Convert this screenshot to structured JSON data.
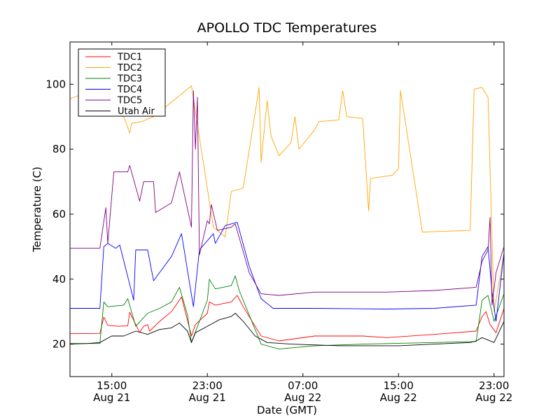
{
  "chart_data": {
    "type": "line",
    "title": "APOLLO TDC Temperatures",
    "xlabel": "Date (GMT)",
    "ylabel": "Temperature (C)",
    "ylim": [
      10,
      113
    ],
    "xlim": [
      "2011-08-21 11:30",
      "2011-08-22 23:50"
    ],
    "yticks": [
      20,
      40,
      60,
      80,
      100
    ],
    "xticks": [
      {
        "at": "2011-08-21 15:00",
        "time": "15:00",
        "date": "Aug 21"
      },
      {
        "at": "2011-08-21 23:00",
        "time": "23:00",
        "date": "Aug 21"
      },
      {
        "at": "2011-08-22 07:00",
        "time": "07:00",
        "date": "Aug 22"
      },
      {
        "at": "2011-08-22 15:00",
        "time": "15:00",
        "date": "Aug 22"
      },
      {
        "at": "2011-08-22 23:00",
        "time": "23:00",
        "date": "Aug 22"
      }
    ],
    "legend_position": "top-left",
    "grid": false,
    "series": [
      {
        "name": "TDC1",
        "color": "#ff0000",
        "points": [
          [
            "2011-08-21 11:30",
            23.2
          ],
          [
            "2011-08-21 14:00",
            23.3
          ],
          [
            "2011-08-21 14:20",
            28.3
          ],
          [
            "2011-08-21 14:40",
            25.8
          ],
          [
            "2011-08-21 15:30",
            25.5
          ],
          [
            "2011-08-21 16:20",
            25.6
          ],
          [
            "2011-08-21 16:30",
            29.8
          ],
          [
            "2011-08-21 17:20",
            23.6
          ],
          [
            "2011-08-21 17:40",
            25.5
          ],
          [
            "2011-08-21 18:00",
            26.0
          ],
          [
            "2011-08-21 18:10",
            24.0
          ],
          [
            "2011-08-21 19:00",
            27.0
          ],
          [
            "2011-08-21 20:00",
            30.0
          ],
          [
            "2011-08-21 20:50",
            34.5
          ],
          [
            "2011-08-21 21:40",
            22.5
          ],
          [
            "2011-08-21 22:00",
            26.0
          ],
          [
            "2011-08-21 23:00",
            29.5
          ],
          [
            "2011-08-21 23:10",
            33.0
          ],
          [
            "2011-08-21 23:40",
            32.0
          ],
          [
            "2011-08-22 01:00",
            33.0
          ],
          [
            "2011-08-22 01:30",
            35.0
          ],
          [
            "2011-08-22 02:00",
            31.5
          ],
          [
            "2011-08-22 03:30",
            22.5
          ],
          [
            "2011-08-22 05:00",
            21.0
          ],
          [
            "2011-08-22 08:00",
            22.5
          ],
          [
            "2011-08-22 12:00",
            22.5
          ],
          [
            "2011-08-22 14:00",
            22.0
          ],
          [
            "2011-08-22 18:00",
            23.0
          ],
          [
            "2011-08-22 21:30",
            24.0
          ],
          [
            "2011-08-22 22:00",
            28.5
          ],
          [
            "2011-08-22 22:20",
            30.0
          ],
          [
            "2011-08-22 22:40",
            26.0
          ],
          [
            "2011-08-22 23:10",
            23.5
          ],
          [
            "2011-08-22 23:50",
            31.0
          ]
        ]
      },
      {
        "name": "TDC2",
        "color": "#ffa500",
        "points": [
          [
            "2011-08-21 11:30",
            95.5
          ],
          [
            "2011-08-21 14:00",
            99.0
          ],
          [
            "2011-08-21 16:00",
            90.0
          ],
          [
            "2011-08-21 16:30",
            85.0
          ],
          [
            "2011-08-21 16:40",
            88.0
          ],
          [
            "2011-08-21 17:30",
            88.5
          ],
          [
            "2011-08-21 18:30",
            90.0
          ],
          [
            "2011-08-21 21:40",
            99.5
          ],
          [
            "2011-08-21 23:30",
            56.0
          ],
          [
            "2011-08-22 00:30",
            53.0
          ],
          [
            "2011-08-22 01:00",
            67.0
          ],
          [
            "2011-08-22 02:00",
            68.0
          ],
          [
            "2011-08-22 03:20",
            99.0
          ],
          [
            "2011-08-22 03:30",
            76.0
          ],
          [
            "2011-08-22 04:00",
            95.0
          ],
          [
            "2011-08-22 04:20",
            84.0
          ],
          [
            "2011-08-22 05:00",
            78.0
          ],
          [
            "2011-08-22 06:00",
            82.0
          ],
          [
            "2011-08-22 06:20",
            90.0
          ],
          [
            "2011-08-22 06:40",
            80.0
          ],
          [
            "2011-08-22 08:00",
            86.0
          ],
          [
            "2011-08-22 08:20",
            88.5
          ],
          [
            "2011-08-22 10:00",
            89.0
          ],
          [
            "2011-08-22 10:20",
            98.0
          ],
          [
            "2011-08-22 10:40",
            90.0
          ],
          [
            "2011-08-22 12:00",
            89.5
          ],
          [
            "2011-08-22 12:30",
            61.0
          ],
          [
            "2011-08-22 12:40",
            71.0
          ],
          [
            "2011-08-22 14:30",
            72.0
          ],
          [
            "2011-08-22 15:00",
            74.0
          ],
          [
            "2011-08-22 15:10",
            98.0
          ],
          [
            "2011-08-22 15:20",
            94.0
          ],
          [
            "2011-08-22 17:00",
            54.5
          ],
          [
            "2011-08-22 21:00",
            55.0
          ],
          [
            "2011-08-22 21:20",
            98.5
          ],
          [
            "2011-08-22 22:00",
            99.0
          ],
          [
            "2011-08-22 22:30",
            96.0
          ],
          [
            "2011-08-22 23:00",
            30.0
          ],
          [
            "2011-08-22 23:50",
            48.0
          ]
        ]
      },
      {
        "name": "TDC3",
        "color": "#008000",
        "points": [
          [
            "2011-08-21 11:30",
            20.2
          ],
          [
            "2011-08-21 14:00",
            20.2
          ],
          [
            "2011-08-21 14:20",
            33.0
          ],
          [
            "2011-08-21 14:40",
            31.5
          ],
          [
            "2011-08-21 16:00",
            32.0
          ],
          [
            "2011-08-21 16:20",
            34.0
          ],
          [
            "2011-08-21 17:00",
            25.5
          ],
          [
            "2011-08-21 18:00",
            29.5
          ],
          [
            "2011-08-21 19:00",
            31.0
          ],
          [
            "2011-08-21 20:00",
            33.0
          ],
          [
            "2011-08-21 20:40",
            37.5
          ],
          [
            "2011-08-21 21:20",
            29.0
          ],
          [
            "2011-08-21 21:40",
            20.5
          ],
          [
            "2011-08-21 23:00",
            33.5
          ],
          [
            "2011-08-21 23:10",
            40.0
          ],
          [
            "2011-08-21 23:40",
            37.0
          ],
          [
            "2011-08-22 01:00",
            38.0
          ],
          [
            "2011-08-22 01:20",
            41.0
          ],
          [
            "2011-08-22 01:40",
            36.5
          ],
          [
            "2011-08-22 03:30",
            20.0
          ],
          [
            "2011-08-22 05:00",
            18.5
          ],
          [
            "2011-08-22 08:00",
            19.5
          ],
          [
            "2011-08-22 12:00",
            20.0
          ],
          [
            "2011-08-22 18:00",
            20.5
          ],
          [
            "2011-08-22 21:30",
            20.8
          ],
          [
            "2011-08-22 22:00",
            33.5
          ],
          [
            "2011-08-22 22:30",
            35.0
          ],
          [
            "2011-08-22 23:00",
            27.0
          ],
          [
            "2011-08-22 23:50",
            35.5
          ]
        ]
      },
      {
        "name": "TDC4",
        "color": "#0000ff",
        "points": [
          [
            "2011-08-21 11:30",
            31.0
          ],
          [
            "2011-08-21 14:00",
            31.0
          ],
          [
            "2011-08-21 14:20",
            50.0
          ],
          [
            "2011-08-21 14:40",
            51.0
          ],
          [
            "2011-08-21 15:20",
            49.5
          ],
          [
            "2011-08-21 15:40",
            50.5
          ],
          [
            "2011-08-21 16:50",
            33.5
          ],
          [
            "2011-08-21 17:00",
            49.0
          ],
          [
            "2011-08-21 18:00",
            49.0
          ],
          [
            "2011-08-21 18:30",
            39.5
          ],
          [
            "2011-08-21 20:00",
            47.0
          ],
          [
            "2011-08-21 20:50",
            54.0
          ],
          [
            "2011-08-21 21:50",
            31.5
          ],
          [
            "2011-08-21 22:20",
            49.0
          ],
          [
            "2011-08-21 23:30",
            54.0
          ],
          [
            "2011-08-21 23:40",
            51.0
          ],
          [
            "2011-08-22 00:30",
            56.5
          ],
          [
            "2011-08-22 01:30",
            57.5
          ],
          [
            "2011-08-22 02:30",
            44.0
          ],
          [
            "2011-08-22 03:30",
            34.0
          ],
          [
            "2011-08-22 04:30",
            31.0
          ],
          [
            "2011-08-22 08:00",
            31.0
          ],
          [
            "2011-08-22 14:00",
            30.8
          ],
          [
            "2011-08-22 18:00",
            31.0
          ],
          [
            "2011-08-22 21:30",
            32.0
          ],
          [
            "2011-08-22 22:00",
            47.0
          ],
          [
            "2011-08-22 22:30",
            50.0
          ],
          [
            "2011-08-22 22:50",
            36.0
          ],
          [
            "2011-08-22 23:10",
            27.0
          ],
          [
            "2011-08-22 23:50",
            48.0
          ]
        ]
      },
      {
        "name": "TDC5",
        "color": "#800080",
        "points": [
          [
            "2011-08-21 11:30",
            49.5
          ],
          [
            "2011-08-21 14:00",
            49.5
          ],
          [
            "2011-08-21 14:30",
            62.0
          ],
          [
            "2011-08-21 14:40",
            51.0
          ],
          [
            "2011-08-21 15:10",
            73.0
          ],
          [
            "2011-08-21 16:20",
            73.0
          ],
          [
            "2011-08-21 16:30",
            75.0
          ],
          [
            "2011-08-21 17:20",
            64.0
          ],
          [
            "2011-08-21 17:40",
            70.0
          ],
          [
            "2011-08-21 18:30",
            70.0
          ],
          [
            "2011-08-21 18:40",
            60.5
          ],
          [
            "2011-08-21 20:00",
            63.5
          ],
          [
            "2011-08-21 20:40",
            73.0
          ],
          [
            "2011-08-21 21:40",
            56.0
          ],
          [
            "2011-08-21 21:50",
            98.0
          ],
          [
            "2011-08-21 22:00",
            80.0
          ],
          [
            "2011-08-21 22:10",
            96.0
          ],
          [
            "2011-08-21 22:20",
            47.5
          ],
          [
            "2011-08-21 23:00",
            58.0
          ],
          [
            "2011-08-21 23:10",
            57.0
          ],
          [
            "2011-08-21 23:20",
            63.0
          ],
          [
            "2011-08-21 23:50",
            55.0
          ],
          [
            "2011-08-22 01:00",
            56.0
          ],
          [
            "2011-08-22 01:20",
            57.0
          ],
          [
            "2011-08-22 02:30",
            42.0
          ],
          [
            "2011-08-22 03:30",
            35.5
          ],
          [
            "2011-08-22 05:00",
            35.0
          ],
          [
            "2011-08-22 08:00",
            36.0
          ],
          [
            "2011-08-22 14:00",
            36.0
          ],
          [
            "2011-08-22 18:00",
            36.5
          ],
          [
            "2011-08-22 21:30",
            37.5
          ],
          [
            "2011-08-22 22:00",
            45.5
          ],
          [
            "2011-08-22 22:30",
            49.0
          ],
          [
            "2011-08-22 22:40",
            59.0
          ],
          [
            "2011-08-22 22:50",
            32.0
          ],
          [
            "2011-08-22 23:10",
            42.0
          ],
          [
            "2011-08-22 23:50",
            50.0
          ]
        ]
      },
      {
        "name": "Utah Air",
        "color": "#000000",
        "points": [
          [
            "2011-08-21 11:30",
            20.0
          ],
          [
            "2011-08-21 13:00",
            20.2
          ],
          [
            "2011-08-21 14:00",
            20.5
          ],
          [
            "2011-08-21 15:00",
            22.5
          ],
          [
            "2011-08-21 16:00",
            22.5
          ],
          [
            "2011-08-21 17:00",
            24.0
          ],
          [
            "2011-08-21 18:00",
            23.0
          ],
          [
            "2011-08-21 19:00",
            24.5
          ],
          [
            "2011-08-21 20:00",
            25.0
          ],
          [
            "2011-08-21 20:40",
            26.5
          ],
          [
            "2011-08-21 21:20",
            24.0
          ],
          [
            "2011-08-21 21:40",
            20.5
          ],
          [
            "2011-08-21 22:00",
            23.5
          ],
          [
            "2011-08-21 23:00",
            25.5
          ],
          [
            "2011-08-22 00:00",
            27.5
          ],
          [
            "2011-08-22 01:00",
            28.5
          ],
          [
            "2011-08-22 01:20",
            29.5
          ],
          [
            "2011-08-22 02:00",
            27.0
          ],
          [
            "2011-08-22 03:00",
            22.5
          ],
          [
            "2011-08-22 04:00",
            20.5
          ],
          [
            "2011-08-22 06:00",
            20.0
          ],
          [
            "2011-08-22 10:00",
            19.5
          ],
          [
            "2011-08-22 15:00",
            19.5
          ],
          [
            "2011-08-22 18:00",
            20.0
          ],
          [
            "2011-08-22 21:00",
            20.5
          ],
          [
            "2011-08-22 21:30",
            21.0
          ],
          [
            "2011-08-22 22:00",
            22.0
          ],
          [
            "2011-08-22 23:00",
            20.5
          ],
          [
            "2011-08-22 23:50",
            27.0
          ]
        ]
      }
    ]
  }
}
